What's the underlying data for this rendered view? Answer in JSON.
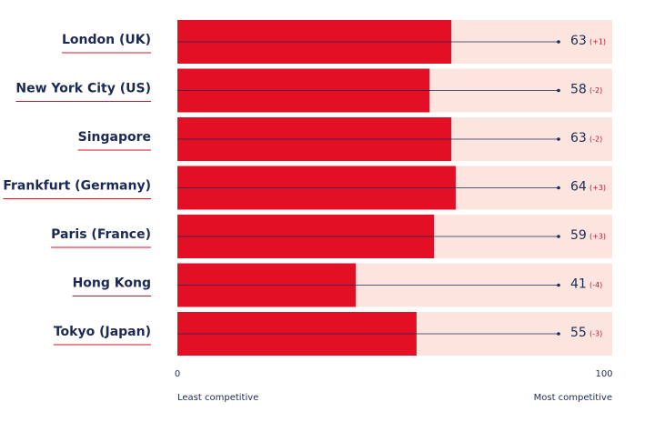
{
  "chart_data": {
    "type": "hbar",
    "categories": [
      "London (UK)",
      "New York City (US)",
      "Singapore",
      "Frankfurt (Germany)",
      "Paris (France)",
      "Hong Kong",
      "Tokyo (Japan)"
    ],
    "values": [
      63,
      58,
      63,
      64,
      59,
      41,
      55
    ],
    "changes": [
      "(+1)",
      "(-2)",
      "(-2)",
      "(+3)",
      "(+3)",
      "(-4)",
      "(-3)"
    ],
    "color": "#e30f25",
    "xlim": [
      0,
      100
    ],
    "xticks": [
      0,
      100
    ],
    "xlabel_left": "Least competitive",
    "xlabel_right": "Most competitive"
  }
}
